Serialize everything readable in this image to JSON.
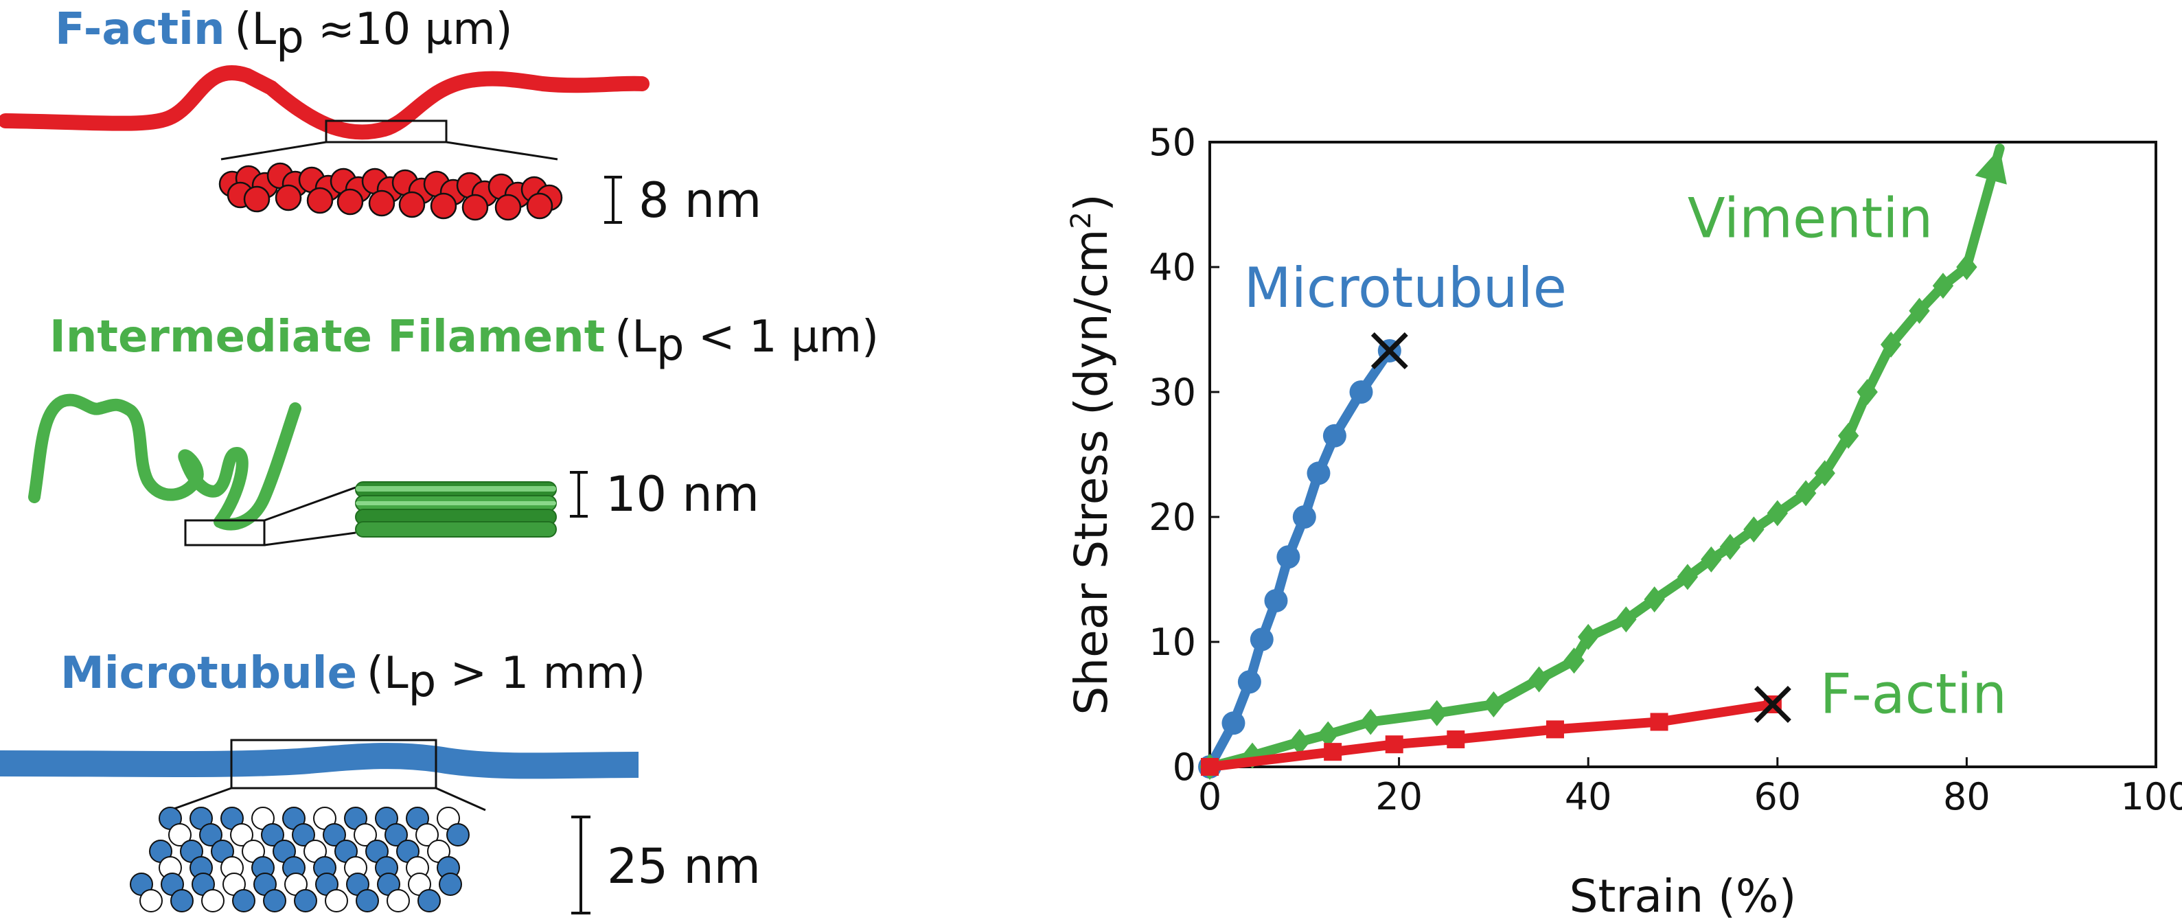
{
  "colors": {
    "factin": "#e21f26",
    "intermediate": "#4ab04a",
    "microtubule": "#3b7dc0",
    "axis": "#111111"
  },
  "schematic": {
    "factin": {
      "name": "F-actin",
      "lp_prefix": "(L",
      "lp_sub": "p",
      "lp_suffix": " ≈10 μm)",
      "diameter": "8 nm"
    },
    "intermediate": {
      "name": "Intermediate Filament",
      "lp_prefix": "(L",
      "lp_sub": "p",
      "lp_suffix": " < 1 μm)",
      "diameter": "10 nm"
    },
    "microtubule": {
      "name": "Microtubule",
      "lp_prefix": "(L",
      "lp_sub": "p",
      "lp_suffix": " > 1 mm)",
      "diameter": "25 nm"
    }
  },
  "chart_data": {
    "type": "line",
    "xlabel": "Strain (%)",
    "ylabel_main": "Shear Stress (dyn/cm",
    "ylabel_sup": "2",
    "ylabel_end": ")",
    "xlim": [
      0,
      100
    ],
    "ylim": [
      0,
      50
    ],
    "xticks": [
      0,
      20,
      40,
      60,
      80,
      100
    ],
    "yticks": [
      0,
      10,
      20,
      30,
      40,
      50
    ],
    "grid": false,
    "series": [
      {
        "name": "Microtubule",
        "marker": "circle",
        "color": "#3b7dc0",
        "end_marker": "x",
        "x": [
          0,
          2.5,
          4.2,
          5.5,
          7.0,
          8.3,
          10.0,
          11.5,
          13.2,
          16.0,
          19.0
        ],
        "y": [
          0,
          3.5,
          6.8,
          10.2,
          13.3,
          16.8,
          20.0,
          23.5,
          26.5,
          30.0,
          33.3
        ]
      },
      {
        "name": "Vimentin",
        "marker": "diamond",
        "color": "#4ab04a",
        "end_marker": "arrow",
        "x": [
          0,
          4.5,
          9.5,
          12.5,
          17.0,
          24.0,
          30.0,
          34.8,
          38.5,
          40.0,
          44.0,
          47.0,
          50.5,
          53.0,
          55.0,
          57.5,
          60.0,
          63.0,
          65.0,
          67.5,
          69.5,
          72.0,
          75.0,
          77.5,
          80.0,
          83.5
        ],
        "y": [
          0,
          0.9,
          2.0,
          2.6,
          3.6,
          4.3,
          5.0,
          7.0,
          8.5,
          10.4,
          11.8,
          13.4,
          15.2,
          16.6,
          17.6,
          19.0,
          20.3,
          21.9,
          23.5,
          26.5,
          30.0,
          33.8,
          36.5,
          38.5,
          40.0,
          49.5
        ]
      },
      {
        "name": "F-actin",
        "marker": "square",
        "color": "#e21f26",
        "end_marker": "x",
        "x": [
          0,
          13.0,
          19.5,
          26.0,
          36.5,
          47.5,
          59.5
        ],
        "y": [
          0,
          1.2,
          1.8,
          2.2,
          3.0,
          3.6,
          5.0
        ]
      }
    ]
  }
}
